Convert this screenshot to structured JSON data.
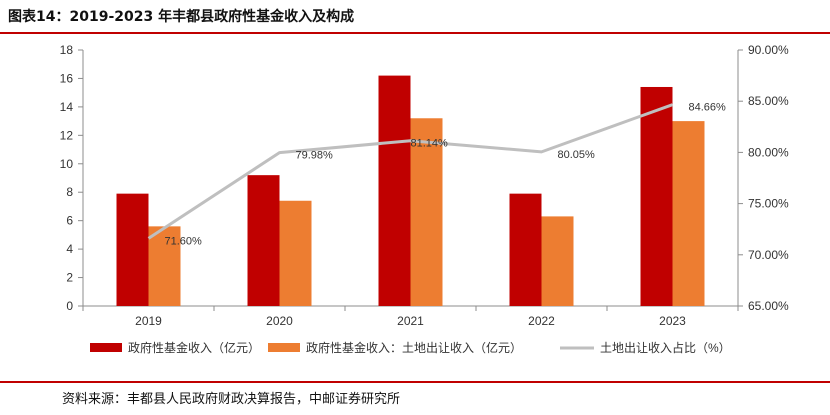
{
  "header": {
    "title": "图表14：2019-2023 年丰都县政府性基金收入及构成"
  },
  "footer": {
    "source": "资料来源：丰都县人民政府财政决算报告，中邮证券研究所"
  },
  "chart_data": {
    "type": "bar+line",
    "title": "2019-2023 年丰都县政府性基金收入及构成",
    "categories": [
      "2019",
      "2020",
      "2021",
      "2022",
      "2023"
    ],
    "left_axis": {
      "min": 0,
      "max": 18,
      "step": 2,
      "ticks": [
        "0",
        "2",
        "4",
        "6",
        "8",
        "10",
        "12",
        "14",
        "16",
        "18"
      ]
    },
    "right_axis": {
      "min": 65,
      "max": 90,
      "step": 5,
      "ticks": [
        "65.00%",
        "70.00%",
        "75.00%",
        "80.00%",
        "85.00%",
        "90.00%"
      ]
    },
    "series": [
      {
        "name": "政府性基金收入（亿元）",
        "type": "bar",
        "axis": "left",
        "color": "#c00000",
        "values": [
          7.9,
          9.2,
          16.2,
          7.9,
          15.4
        ]
      },
      {
        "name": "政府性基金收入：土地出让收入（亿元）",
        "type": "bar",
        "axis": "left",
        "color": "#ed7d31",
        "values": [
          5.6,
          7.4,
          13.2,
          6.3,
          13.0
        ]
      },
      {
        "name": "土地出让收入占比（%）",
        "type": "line",
        "axis": "right",
        "color": "#bfbfbf",
        "values": [
          71.6,
          79.98,
          81.14,
          80.05,
          84.66
        ],
        "labels": [
          "71.60%",
          "79.98%",
          "81.14%",
          "80.05%",
          "84.66%"
        ]
      }
    ],
    "legend": [
      "政府性基金收入（亿元）",
      "政府性基金收入：土地出让收入（亿元）",
      "土地出让收入占比（%）"
    ]
  }
}
